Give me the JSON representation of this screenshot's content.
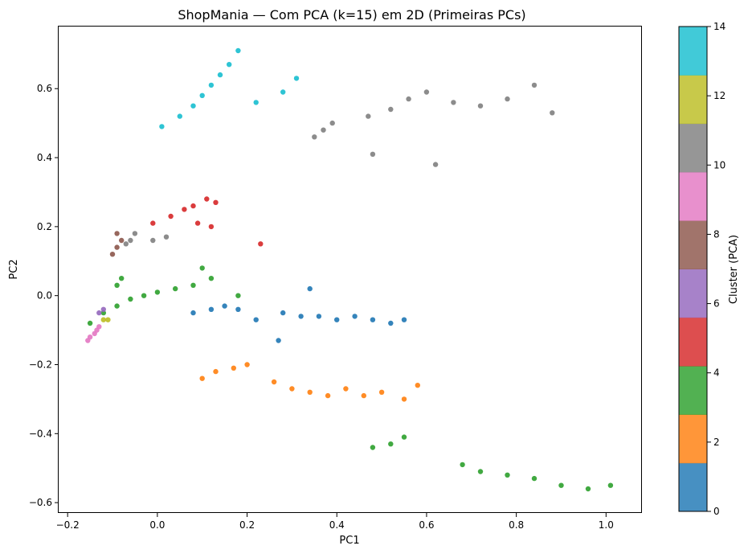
{
  "chart_data": {
    "type": "scatter",
    "title": "ShopMania — Com PCA (k=15) em 2D (Primeiras PCs)",
    "xlabel": "PC1",
    "ylabel": "PC2",
    "xlim": [
      -0.22,
      1.08
    ],
    "ylim": [
      -0.63,
      0.78
    ],
    "xticks": [
      -0.2,
      0.0,
      0.2,
      0.4,
      0.6,
      0.8,
      1.0
    ],
    "xtick_labels": [
      "−0.2",
      "0.0",
      "0.2",
      "0.4",
      "0.6",
      "0.8",
      "1.0"
    ],
    "yticks": [
      -0.6,
      -0.4,
      -0.2,
      0.0,
      0.2,
      0.4,
      0.6
    ],
    "ytick_labels": [
      "−0.6",
      "−0.4",
      "−0.2",
      "0.0",
      "0.2",
      "0.4",
      "0.6"
    ],
    "grid": false,
    "colorbar": {
      "label": "Cluster (PCA)",
      "range": [
        0,
        14
      ],
      "ticks": [
        0,
        2,
        4,
        6,
        8,
        10,
        12,
        14
      ],
      "tick_labels": [
        "0",
        "2",
        "4",
        "6",
        "8",
        "10",
        "12",
        "14"
      ],
      "colors": [
        "#1f77b4",
        "#ff7f0e",
        "#2ca02c",
        "#d62728",
        "#9467bd",
        "#8c564b",
        "#e377c2",
        "#7f7f7f",
        "#bcbd22",
        "#17becf"
      ]
    },
    "clusters": [
      {
        "cluster": 0,
        "color": "#1f77b4",
        "approx_points": [
          [
            0.08,
            -0.05
          ],
          [
            0.12,
            -0.04
          ],
          [
            0.15,
            -0.03
          ],
          [
            0.18,
            -0.04
          ],
          [
            0.22,
            -0.07
          ],
          [
            0.28,
            -0.05
          ],
          [
            0.32,
            -0.06
          ],
          [
            0.36,
            -0.06
          ],
          [
            0.4,
            -0.07
          ],
          [
            0.44,
            -0.06
          ],
          [
            0.48,
            -0.07
          ],
          [
            0.52,
            -0.08
          ],
          [
            0.55,
            -0.07
          ],
          [
            0.34,
            0.02
          ],
          [
            0.27,
            -0.13
          ]
        ]
      },
      {
        "cluster": 2,
        "color": "#ff7f0e",
        "approx_points": [
          [
            0.1,
            -0.24
          ],
          [
            0.13,
            -0.22
          ],
          [
            0.17,
            -0.21
          ],
          [
            0.2,
            -0.2
          ],
          [
            0.26,
            -0.25
          ],
          [
            0.3,
            -0.27
          ],
          [
            0.34,
            -0.28
          ],
          [
            0.38,
            -0.29
          ],
          [
            0.42,
            -0.27
          ],
          [
            0.46,
            -0.29
          ],
          [
            0.5,
            -0.28
          ],
          [
            0.55,
            -0.3
          ],
          [
            0.58,
            -0.26
          ]
        ]
      },
      {
        "cluster": 4,
        "color": "#2ca02c",
        "approx_points": [
          [
            -0.15,
            -0.08
          ],
          [
            -0.12,
            -0.05
          ],
          [
            -0.09,
            -0.03
          ],
          [
            -0.06,
            -0.01
          ],
          [
            -0.03,
            0.0
          ],
          [
            0.0,
            0.01
          ],
          [
            0.04,
            0.02
          ],
          [
            0.08,
            0.03
          ],
          [
            -0.09,
            0.03
          ],
          [
            -0.08,
            0.05
          ],
          [
            0.12,
            0.05
          ],
          [
            0.18,
            0.0
          ],
          [
            0.1,
            0.08
          ],
          [
            0.48,
            -0.44
          ],
          [
            0.52,
            -0.43
          ],
          [
            0.55,
            -0.41
          ],
          [
            0.68,
            -0.49
          ],
          [
            0.72,
            -0.51
          ],
          [
            0.78,
            -0.52
          ],
          [
            0.84,
            -0.53
          ],
          [
            0.9,
            -0.55
          ],
          [
            0.96,
            -0.56
          ],
          [
            1.01,
            -0.55
          ]
        ]
      },
      {
        "cluster": 6,
        "color": "#d62728",
        "approx_points": [
          [
            -0.01,
            0.21
          ],
          [
            0.03,
            0.23
          ],
          [
            0.06,
            0.25
          ],
          [
            0.08,
            0.26
          ],
          [
            0.11,
            0.28
          ],
          [
            0.13,
            0.27
          ],
          [
            0.09,
            0.21
          ],
          [
            0.12,
            0.2
          ],
          [
            0.23,
            0.15
          ]
        ]
      },
      {
        "cluster": 7,
        "color": "#9467bd",
        "approx_points": [
          [
            -0.13,
            -0.05
          ],
          [
            -0.12,
            -0.04
          ]
        ]
      },
      {
        "cluster": 8,
        "color": "#8c564b",
        "approx_points": [
          [
            -0.1,
            0.12
          ],
          [
            -0.09,
            0.14
          ],
          [
            -0.08,
            0.16
          ],
          [
            -0.09,
            0.18
          ]
        ]
      },
      {
        "cluster": 9,
        "color": "#e377c2",
        "approx_points": [
          [
            -0.155,
            -0.13
          ],
          [
            -0.15,
            -0.12
          ],
          [
            -0.14,
            -0.11
          ],
          [
            -0.135,
            -0.1
          ],
          [
            -0.13,
            -0.09
          ]
        ]
      },
      {
        "cluster": 10,
        "color": "#7f7f7f",
        "approx_points": [
          [
            -0.07,
            0.15
          ],
          [
            -0.06,
            0.16
          ],
          [
            -0.05,
            0.18
          ],
          [
            -0.01,
            0.16
          ],
          [
            0.02,
            0.17
          ],
          [
            0.35,
            0.46
          ],
          [
            0.37,
            0.48
          ],
          [
            0.39,
            0.5
          ],
          [
            0.47,
            0.52
          ],
          [
            0.52,
            0.54
          ],
          [
            0.56,
            0.57
          ],
          [
            0.6,
            0.59
          ],
          [
            0.66,
            0.56
          ],
          [
            0.72,
            0.55
          ],
          [
            0.78,
            0.57
          ],
          [
            0.84,
            0.61
          ],
          [
            0.88,
            0.53
          ],
          [
            0.48,
            0.41
          ],
          [
            0.62,
            0.38
          ]
        ]
      },
      {
        "cluster": 11,
        "color": "#bcbd22",
        "approx_points": [
          [
            -0.12,
            -0.07
          ],
          [
            -0.11,
            -0.07
          ]
        ]
      },
      {
        "cluster": 14,
        "color": "#17becf",
        "approx_points": [
          [
            0.01,
            0.49
          ],
          [
            0.05,
            0.52
          ],
          [
            0.08,
            0.55
          ],
          [
            0.1,
            0.58
          ],
          [
            0.12,
            0.61
          ],
          [
            0.14,
            0.64
          ],
          [
            0.16,
            0.67
          ],
          [
            0.18,
            0.71
          ],
          [
            0.22,
            0.56
          ],
          [
            0.28,
            0.59
          ],
          [
            0.31,
            0.63
          ]
        ]
      }
    ]
  }
}
